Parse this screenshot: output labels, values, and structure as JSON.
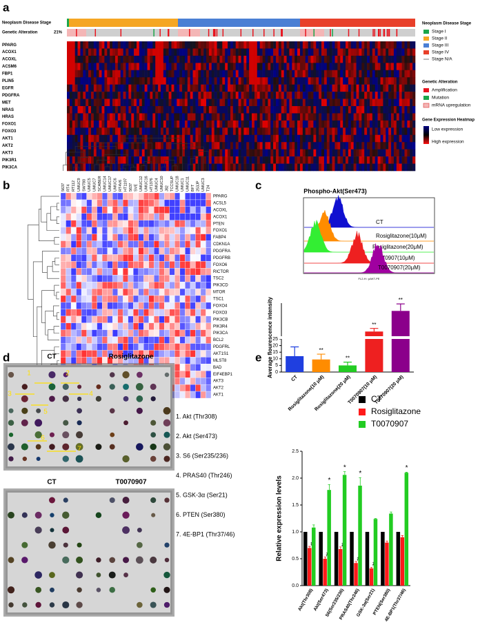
{
  "figure": {
    "a": {
      "label": "a",
      "stage_title": "Neoplasm Disease Stage",
      "alteration_title": "Genetic Alteration",
      "alteration_pct": "21%",
      "genes": [
        "PPARG",
        "ACOX1",
        "ACOXL",
        "ACSM6",
        "FBP1",
        "PLIN5",
        "EGFR",
        "PDGFRA",
        "MET",
        "NRAS",
        "HRAS",
        "FOXO1",
        "FOXO3",
        "AKT1",
        "AKT2",
        "AKT3",
        "PIK3R1",
        "PIK3CA"
      ],
      "legend": {
        "stage_title": "Neoplasm Disease Stage",
        "stages": [
          {
            "name": "Stage I",
            "color": "#1aa64a"
          },
          {
            "name": "Stage II",
            "color": "#f5a623"
          },
          {
            "name": "Stage III",
            "color": "#4a7fd4"
          },
          {
            "name": "Stage IV",
            "color": "#e8402a"
          },
          {
            "name": "Stage N/A",
            "color": "#777777"
          }
        ],
        "alteration_title": "Genetic Alteration",
        "alterations": [
          {
            "name": "Amplification",
            "color": "#e8141e"
          },
          {
            "name": "Mutation",
            "color": "#1aa64a"
          },
          {
            "name": "mRNA upregulation",
            "color": "#f4b6b6"
          }
        ],
        "heatmap_title": "Gene Expression Heatmap",
        "low": "Low expression",
        "high": "High expression"
      }
    },
    "b": {
      "label": "b",
      "columns": [
        "5637",
        "RT4",
        "RT112",
        "UMUC9",
        "SW780",
        "UMUC5",
        "UMUC7",
        "SCABER",
        "UMUC14",
        "UMUC17",
        "UMUC6",
        "RT4V6",
        "HT1197",
        "5637",
        "SVE",
        "UMUC12",
        "UMUC16",
        "HT1376",
        "UMUC4",
        "UMUC10",
        "J82",
        "TCCSUP",
        "UMUC18",
        "UMUC1",
        "UMUC11",
        "BFT",
        "253JP",
        "UMUC3",
        "T24"
      ],
      "rows": [
        "PPARG",
        "ACSL5",
        "ACOXL",
        "ACOX1",
        "PTEN",
        "FOXO1",
        "FABP4",
        "CDKN1A",
        "PDGFRA",
        "PDGFRB",
        "FOXO6",
        "RICTOR",
        "TSC2",
        "PIK3CD",
        "MTOR",
        "TSC1",
        "FOXO4",
        "FOXO3",
        "PIK3CB",
        "PIK3R4",
        "PIK3CA",
        "BCL2",
        "PDGFRL",
        "AKT1S1",
        "MLST8",
        "BAD",
        "EIF4EBP1",
        "AKT3",
        "AKT2",
        "AKT1"
      ]
    },
    "c": {
      "label": "c",
      "title": "Phospho-Akt(Ser473)",
      "x_axis": "FL2-H:: pAKT-PE",
      "histograms": [
        {
          "name": "CT",
          "color": "#1010d0"
        },
        {
          "name": "Rosiglitazone(10μM)",
          "color": "#ff8c00"
        },
        {
          "name": "Rosiglitazone(20μM)",
          "color": "#33ee33"
        },
        {
          "name": "T0070907(10μM)",
          "color": "#ee2020"
        },
        {
          "name": "T0070907(20μM)",
          "color": "#a000a0"
        }
      ]
    },
    "d": {
      "label": "d",
      "blots": [
        "CT",
        "Rosiglitazone",
        "CT",
        "T0070907"
      ],
      "markers": [
        "1",
        "2",
        "3",
        "4",
        "5",
        "6",
        "7"
      ],
      "legend": [
        "1. Akt (Thr308)",
        "2. Akt (Ser473)",
        "3. S6 (Ser235/236)",
        "4. PRAS40 (Thr246)",
        "5. GSK-3α (Ser21)",
        "6. PTEN (Ser380)",
        "7. 4E-BP1 (Thr37/46)"
      ]
    },
    "e": {
      "label": "e"
    }
  },
  "chart_data": [
    {
      "type": "bar",
      "y_label": "Average flourescence intensity",
      "categories": [
        "CT",
        "Rosiglitazone(10 μM)",
        "Rosiglitazone(20 μM)",
        "T0070907(10 μM)",
        "T0070907(20 μM)"
      ],
      "values": [
        12,
        9.5,
        5,
        37,
        90
      ],
      "errors": [
        7,
        4,
        2.5,
        8,
        18
      ],
      "colors": [
        "#1f3fe0",
        "#ff8c00",
        "#22cc22",
        "#ee2020",
        "#8b008b"
      ],
      "significance": [
        null,
        "**",
        "**",
        "**",
        "**"
      ],
      "ylim": [
        0,
        110
      ],
      "axis_break": 25,
      "yticks": [
        0,
        5,
        10,
        15,
        20,
        25
      ]
    },
    {
      "type": "grouped_bar",
      "y_label": "Relative expression levels",
      "categories": [
        "Akt(Thr308)",
        "Akt(Ser473)",
        "S6(Ser235/236)",
        "PRAS40(Thr246)",
        "GSK-3α(Ser21)",
        "PTEN(Ser380)",
        "4E-BP1(Thr37/46)"
      ],
      "series": [
        {
          "name": "CT",
          "color": "#000000",
          "values": [
            1,
            1,
            1,
            1,
            1,
            1,
            1
          ],
          "errors": [
            0,
            0,
            0,
            0,
            0,
            0,
            0
          ],
          "marks": [
            null,
            null,
            null,
            null,
            null,
            null,
            null
          ]
        },
        {
          "name": "Rosiglitazone",
          "color": "#ff1a1a",
          "values": [
            0.7,
            0.5,
            0.68,
            0.42,
            0.32,
            0.8,
            0.9
          ],
          "errors": [
            0.03,
            0.03,
            0.04,
            0.03,
            0.02,
            0.03,
            0.03
          ],
          "marks": [
            "#",
            "#",
            "#",
            "#",
            "#",
            null,
            null
          ]
        },
        {
          "name": "T0070907",
          "color": "#22cc22",
          "values": [
            1.08,
            1.78,
            2.06,
            1.86,
            1.24,
            1.34,
            2.1
          ],
          "errors": [
            0.05,
            0.1,
            0.06,
            0.15,
            0.01,
            0.03,
            0.01
          ],
          "marks": [
            null,
            "*",
            "*",
            "*",
            null,
            null,
            "*"
          ]
        }
      ],
      "ylim": [
        0,
        2.5
      ],
      "yticks": [
        {
          "value": 0,
          "label": "0.0"
        },
        {
          "value": 0.5,
          "label": "0.5"
        },
        {
          "value": 1,
          "label": "1.0"
        },
        {
          "value": 1.5,
          "label": "1.5"
        },
        {
          "value": 2,
          "label": "2.0"
        },
        {
          "value": 2.5,
          "label": "2.5"
        }
      ]
    }
  ]
}
